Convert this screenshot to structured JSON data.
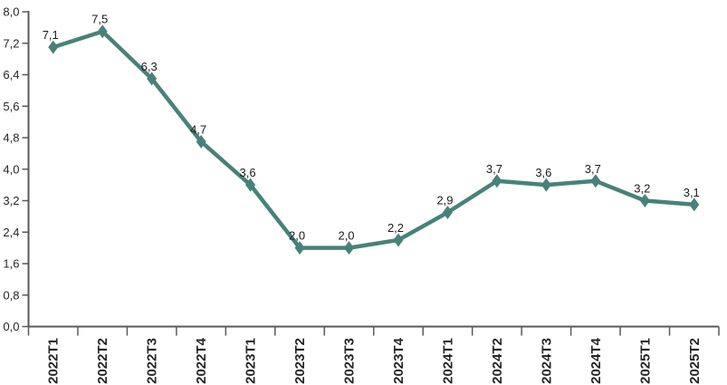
{
  "chart_data": {
    "type": "line",
    "title": "",
    "xlabel": "",
    "ylabel": "",
    "categories": [
      "2022T1",
      "2022T2",
      "2022T3",
      "2022T4",
      "2023T1",
      "2023T2",
      "2023T3",
      "2023T4",
      "2024T1",
      "2024T2",
      "2024T3",
      "2024T4",
      "2025T1",
      "2025T2"
    ],
    "series": [
      {
        "name": "",
        "values": [
          7.1,
          7.5,
          6.3,
          4.7,
          3.6,
          2.0,
          2.0,
          2.2,
          2.9,
          3.7,
          3.6,
          3.7,
          3.2,
          3.1
        ],
        "point_labels": [
          "7,1",
          "7,5",
          "6,3",
          "4,7",
          "3,6",
          "2,0",
          "2,0",
          "2,2",
          "2,9",
          "3,7",
          "3,6",
          "3,7",
          "3,2",
          "3,1"
        ]
      }
    ],
    "ylim": [
      0,
      8
    ],
    "yticks": [
      {
        "value": 0.0,
        "label": "0,0"
      },
      {
        "value": 0.8,
        "label": "0,8"
      },
      {
        "value": 1.6,
        "label": "1,6"
      },
      {
        "value": 2.4,
        "label": "2,4"
      },
      {
        "value": 3.2,
        "label": "3,2"
      },
      {
        "value": 4.0,
        "label": "4,0"
      },
      {
        "value": 4.8,
        "label": "4,8"
      },
      {
        "value": 5.6,
        "label": "5,6"
      },
      {
        "value": 6.4,
        "label": "6,4"
      },
      {
        "value": 7.2,
        "label": "7,2"
      },
      {
        "value": 8.0,
        "label": "8,0"
      }
    ],
    "grid": false,
    "legend_position": "none",
    "marker": "diamond",
    "colors": {
      "line": "#47827A",
      "marker": "#47827A",
      "axis": "#595959",
      "tick_text": "#262626",
      "data_label_text": "#1a1a1a"
    }
  }
}
